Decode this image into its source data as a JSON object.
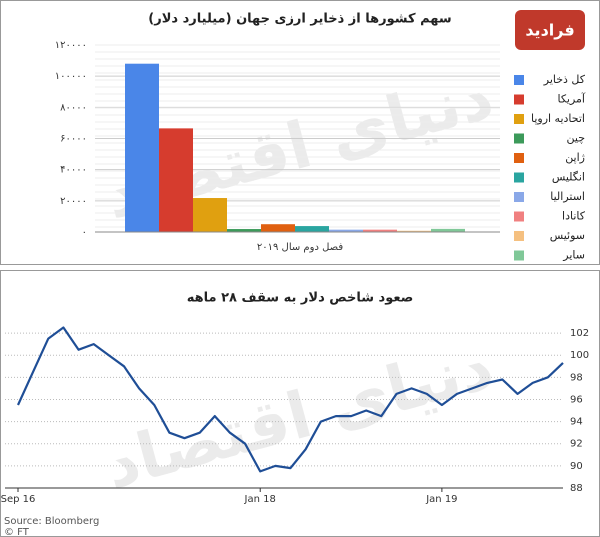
{
  "watermark": "دنیای اقتصاد",
  "logo": "فرادید",
  "chart_data": [
    {
      "type": "bar",
      "title": "سهم کشورها از ذخایر ارزی جهان (میلیارد دلار)",
      "xlabel": "فصل دوم سال ۲۰۱۹",
      "categories": [
        "کل ذخایر",
        "آمریکا",
        "اتحادیه اروپا",
        "چین",
        "ژاپن",
        "انگلیس",
        "استرالیا",
        "کانادا",
        "سوئیس",
        "سایر"
      ],
      "values": [
        108000,
        66500,
        21800,
        1900,
        5000,
        3800,
        1500,
        1500,
        800,
        2000
      ],
      "colors": [
        "#4a86e8",
        "#d63c2e",
        "#e0a010",
        "#3c9a5a",
        "#e06010",
        "#2aa5a0",
        "#8aa8e8",
        "#f08080",
        "#f5c080",
        "#80c898"
      ],
      "ylim": [
        0,
        120000
      ],
      "yticks": [
        {
          "value": 0,
          "label": "۰"
        },
        {
          "value": 20000,
          "label": "۲۰۰۰۰"
        },
        {
          "value": 40000,
          "label": "۴۰۰۰۰"
        },
        {
          "value": 60000,
          "label": "۶۰۰۰۰"
        },
        {
          "value": 80000,
          "label": "۸۰۰۰۰"
        },
        {
          "value": 100000,
          "label": "۱۰۰۰۰۰"
        },
        {
          "value": 120000,
          "label": "۱۲۰۰۰۰"
        }
      ],
      "grid": true,
      "legend": "right"
    },
    {
      "type": "line",
      "title": "صعود شاخص دلار به سقف ۲۸ ماهه",
      "categories": [
        "Sep 16",
        null,
        null,
        null,
        null,
        null,
        null,
        null,
        null,
        null,
        null,
        null,
        null,
        null,
        null,
        null,
        "Jan 18",
        null,
        null,
        null,
        null,
        null,
        null,
        null,
        null,
        null,
        null,
        null,
        "Jan 19",
        null,
        null,
        null,
        null,
        null,
        null,
        null,
        null
      ],
      "values": [
        95.5,
        98.5,
        101.5,
        102.5,
        100.5,
        101,
        100,
        99,
        97,
        95.5,
        93,
        92.5,
        93,
        94.5,
        93,
        92,
        89.5,
        90,
        89.8,
        91.5,
        94,
        94.5,
        94.5,
        95,
        94.5,
        96.5,
        97,
        96.5,
        95.5,
        96.5,
        97,
        97.5,
        97.8,
        96.5,
        97.5,
        98,
        99.3
      ],
      "color": "#1f4e96",
      "ylim": [
        88,
        103
      ],
      "yticks": [
        88,
        90,
        92,
        94,
        96,
        98,
        100,
        102
      ],
      "grid": true,
      "source": "Source: Bloomberg",
      "credit": "© FT"
    }
  ]
}
